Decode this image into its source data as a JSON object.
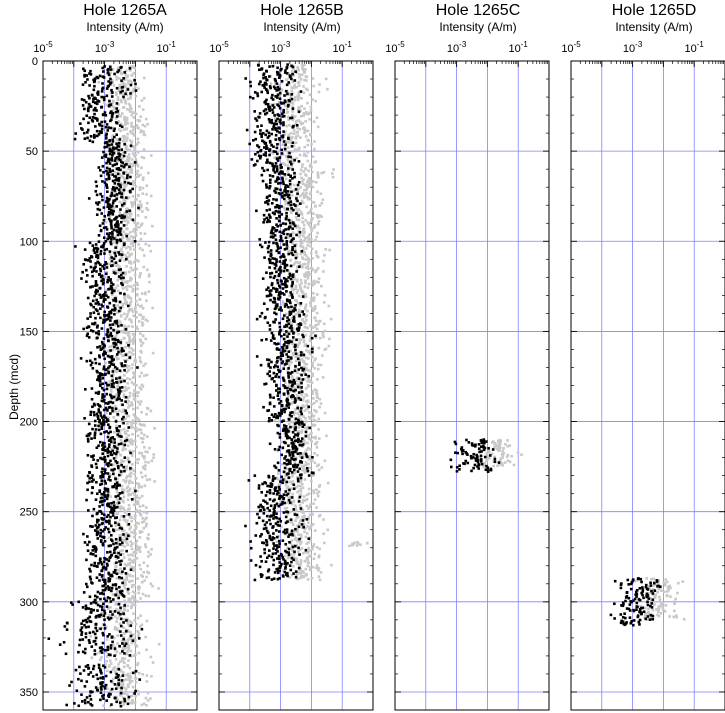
{
  "chart_data": {
    "type": "scatter",
    "ylabel": "Depth (mcd)",
    "ylim": [
      0,
      360
    ],
    "yticks": [
      "0",
      "50",
      "100",
      "150",
      "200",
      "250",
      "300",
      "350"
    ],
    "x_scale": "log",
    "xlim": [
      1e-05,
      1
    ],
    "xtick_labels": [
      {
        "base": "10",
        "exp": "-5"
      },
      {
        "base": "10",
        "exp": "-3"
      },
      {
        "base": "10",
        "exp": "-1"
      }
    ],
    "series_colors": [
      "#000000",
      "#c8c8c8"
    ],
    "panels": [
      {
        "title": "Hole 1265A",
        "xlabel": "Intensity (A/m)",
        "series": [
          {
            "color": "#000000",
            "segments": [
              {
                "depths": [
                  3,
                  20
                ],
                "center": 0.0015,
                "spread": 0.4
              },
              {
                "depths": [
                  20,
                  45
                ],
                "center": 0.0008,
                "spread": 0.35
              },
              {
                "depths": [
                  45,
                  100
                ],
                "center": 0.0018,
                "spread": 0.3
              },
              {
                "depths": [
                  100,
                  150
                ],
                "center": 0.001,
                "spread": 0.35
              },
              {
                "depths": [
                  150,
                  200
                ],
                "center": 0.0013,
                "spread": 0.35
              },
              {
                "depths": [
                  200,
                  260
                ],
                "center": 0.0012,
                "spread": 0.35
              },
              {
                "depths": [
                  260,
                  300
                ],
                "center": 0.0012,
                "spread": 0.35
              },
              {
                "depths": [
                  300,
                  330
                ],
                "center": 0.0007,
                "spread": 0.55
              },
              {
                "depths": [
                  335,
                  358
                ],
                "center": 0.0008,
                "spread": 0.5
              }
            ]
          },
          {
            "color": "#c8c8c8",
            "segments": [
              {
                "depths": [
                  3,
                  30
                ],
                "center": 0.004,
                "spread": 0.3
              },
              {
                "depths": [
                  30,
                  100
                ],
                "center": 0.006,
                "spread": 0.3
              },
              {
                "depths": [
                  100,
                  200
                ],
                "center": 0.005,
                "spread": 0.35
              },
              {
                "depths": [
                  200,
                  300
                ],
                "center": 0.007,
                "spread": 0.35
              },
              {
                "depths": [
                  300,
                  340
                ],
                "center": 0.004,
                "spread": 0.4
              },
              {
                "depths": [
                  340,
                  358
                ],
                "center": 0.005,
                "spread": 0.4
              }
            ]
          }
        ]
      },
      {
        "title": "Hole 1265B",
        "xlabel": "Intensity (A/m)",
        "series": [
          {
            "color": "#000000",
            "segments": [
              {
                "depths": [
                  2,
                  60
                ],
                "center": 0.0006,
                "spread": 0.35
              },
              {
                "depths": [
                  60,
                  130
                ],
                "center": 0.001,
                "spread": 0.3
              },
              {
                "depths": [
                  130,
                  200
                ],
                "center": 0.0015,
                "spread": 0.35
              },
              {
                "depths": [
                  200,
                  230
                ],
                "center": 0.0025,
                "spread": 0.3
              },
              {
                "depths": [
                  230,
                  288
                ],
                "center": 0.0008,
                "spread": 0.4
              }
            ]
          },
          {
            "color": "#c8c8c8",
            "segments": [
              {
                "depths": [
                  2,
                  60
                ],
                "center": 0.003,
                "spread": 0.35
              },
              {
                "depths": [
                  60,
                  200
                ],
                "center": 0.006,
                "spread": 0.35
              },
              {
                "depths": [
                  200,
                  288
                ],
                "center": 0.005,
                "spread": 0.35
              },
              {
                "depths": [
                  267,
                  269
                ],
                "center": 0.25,
                "spread": 0.25
              }
            ]
          }
        ]
      },
      {
        "title": "Hole 1265C",
        "xlabel": "Intensity (A/m)",
        "series": [
          {
            "color": "#000000",
            "segments": [
              {
                "depths": [
                  210,
                  228
                ],
                "center": 0.004,
                "spread": 0.35
              }
            ]
          },
          {
            "color": "#c8c8c8",
            "segments": [
              {
                "depths": [
                  210,
                  225
                ],
                "center": 0.02,
                "spread": 0.3
              }
            ]
          }
        ]
      },
      {
        "title": "Hole 1265D",
        "xlabel": "Intensity (A/m)",
        "series": [
          {
            "color": "#000000",
            "segments": [
              {
                "depths": [
                  287,
                  313
                ],
                "center": 0.0015,
                "spread": 0.35
              }
            ]
          },
          {
            "color": "#c8c8c8",
            "segments": [
              {
                "depths": [
                  287,
                  310
                ],
                "center": 0.007,
                "spread": 0.35
              }
            ]
          }
        ]
      }
    ]
  }
}
